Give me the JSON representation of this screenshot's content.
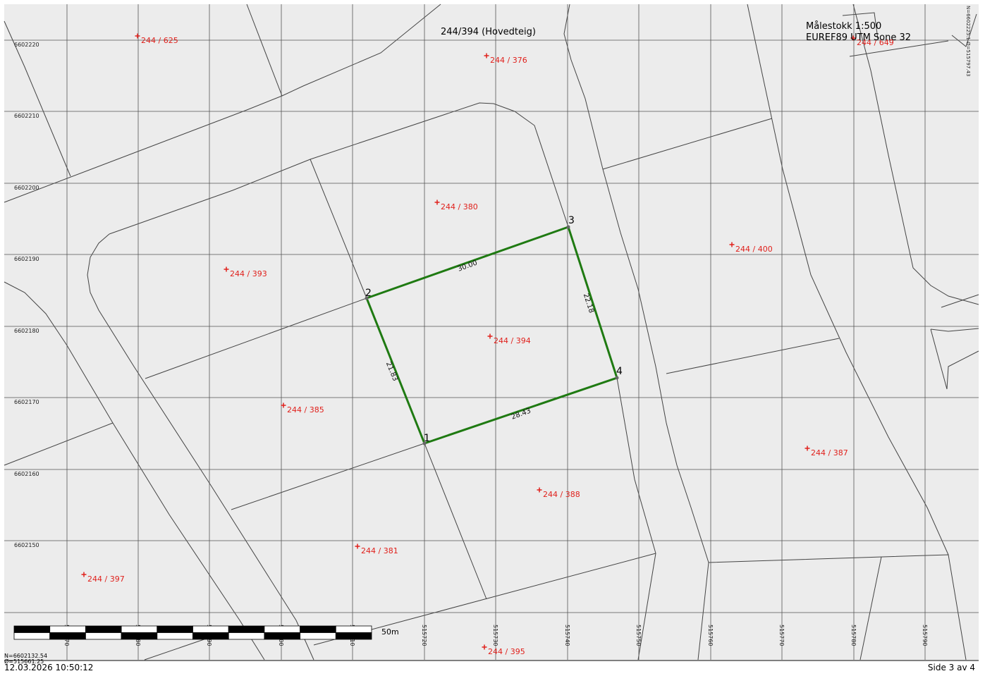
{
  "header": {
    "title": "244/394 (Hovedteig)",
    "scale_label": "Målestokk 1:500",
    "projection_label": "EUREF89 UTM Sone 32",
    "top_right_coords": "N=6602225.1 Ø=515797.43"
  },
  "footer": {
    "timestamp": "12.03.2026 10:50:12",
    "page_label": "Side 3 av 4",
    "corner_north": "N=6602132.54",
    "corner_east": "Ø=515661.25"
  },
  "grid": {
    "northing_labels": [
      "6602220",
      "6602210",
      "6602200",
      "6602190",
      "6602180",
      "6602170",
      "6602160",
      "6602150"
    ],
    "easting_labels": [
      "515670",
      "515680",
      "515690",
      "515700",
      "515710",
      "515720",
      "515730",
      "515740",
      "515750",
      "515760",
      "515770",
      "515780",
      "515790"
    ]
  },
  "scalebar": {
    "label": "50m",
    "segments": 10
  },
  "parcels": [
    {
      "label": "244 / 625"
    },
    {
      "label": "244 / 376"
    },
    {
      "label": "244 / 649"
    },
    {
      "label": "244 / 380"
    },
    {
      "label": "244 / 400"
    },
    {
      "label": "244 / 393"
    },
    {
      "label": "244 / 394"
    },
    {
      "label": "244 / 385"
    },
    {
      "label": "244 / 387"
    },
    {
      "label": "244 / 388"
    },
    {
      "label": "244 / 381"
    },
    {
      "label": "244 / 397"
    },
    {
      "label": "244 / 395"
    }
  ],
  "boundary": {
    "color": "#1f7a12",
    "corners": [
      {
        "label": "1",
        "east": 515720,
        "north": 6602164
      },
      {
        "label": "2",
        "east": 515712,
        "north": 6602184
      },
      {
        "label": "3",
        "east": 515740,
        "north": 6602194
      },
      {
        "label": "4",
        "east": 515747,
        "north": 6602173
      }
    ],
    "edges": [
      {
        "label": "21.83"
      },
      {
        "label": "30.00"
      },
      {
        "label": "22.18"
      },
      {
        "label": "28.43"
      }
    ]
  },
  "colors": {
    "parcel_label": "#e0201b",
    "background": "#ececec",
    "lines": "#444444",
    "grid": "#555555"
  }
}
